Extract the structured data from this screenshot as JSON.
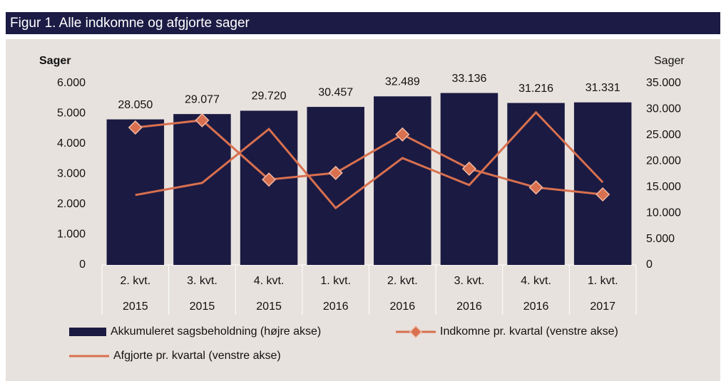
{
  "chart_data": {
    "type": "bar-line",
    "title": "Figur 1. Alle indkomne  og afgjorte sager",
    "ylabel": "Sager",
    "y2label": "Sager",
    "categories": [
      [
        "2. kvt.",
        "2015"
      ],
      [
        "3. kvt.",
        "2015"
      ],
      [
        "4. kvt.",
        "2015"
      ],
      [
        "1. kvt.",
        "2016"
      ],
      [
        "2. kvt.",
        "2016"
      ],
      [
        "3. kvt.",
        "2016"
      ],
      [
        "4. kvt.",
        "2016"
      ],
      [
        "1. kvt.",
        "2017"
      ]
    ],
    "series": [
      {
        "name": "Akkumuleret sagsbeholdning (højre akse)",
        "type": "bar",
        "axis": "y2",
        "color": "#1b1a42",
        "values": [
          28050,
          29077,
          29720,
          30457,
          32489,
          33136,
          31216,
          31331
        ],
        "value_labels": [
          "28.050",
          "29.077",
          "29.720",
          "30.457",
          "32.489",
          "33.136",
          "31.216",
          "31.331"
        ]
      },
      {
        "name": "Indkomne pr. kvartal (venstre akse)",
        "type": "line",
        "marker": "diamond",
        "color": "#d8704f",
        "values": [
          4540,
          4780,
          2820,
          3040,
          4310,
          3180,
          2560,
          2330
        ]
      },
      {
        "name": "Afgjorte pr. kvartal (venstre akse)",
        "type": "line",
        "color": "#d8704f",
        "values": [
          2310,
          2710,
          4490,
          1880,
          3530,
          2640,
          5040,
          2730
        ]
      }
    ],
    "ylim": [
      0,
      6000
    ],
    "yticks": [
      0,
      {
        "value": 1000,
        "label": "1.000"
      },
      {
        "value": 2000,
        "label": "2.000"
      },
      {
        "value": 3000,
        "label": "3.000"
      },
      {
        "value": 4000,
        "label": "4.000"
      },
      {
        "value": 5000,
        "label": "5.000"
      },
      {
        "value": 6000,
        "label": "6.000"
      }
    ],
    "y2lim": [
      0,
      35000
    ],
    "y2ticks": [
      0,
      {
        "value": 5000,
        "label": "5.000"
      },
      {
        "value": 10000,
        "label": "10.000"
      },
      {
        "value": 15000,
        "label": "15.000"
      },
      {
        "value": 20000,
        "label": "20.000"
      },
      {
        "value": 25000,
        "label": "25.000"
      },
      {
        "value": 30000,
        "label": "30.000"
      },
      {
        "value": 35000,
        "label": "35.000"
      }
    ],
    "grid": false
  }
}
